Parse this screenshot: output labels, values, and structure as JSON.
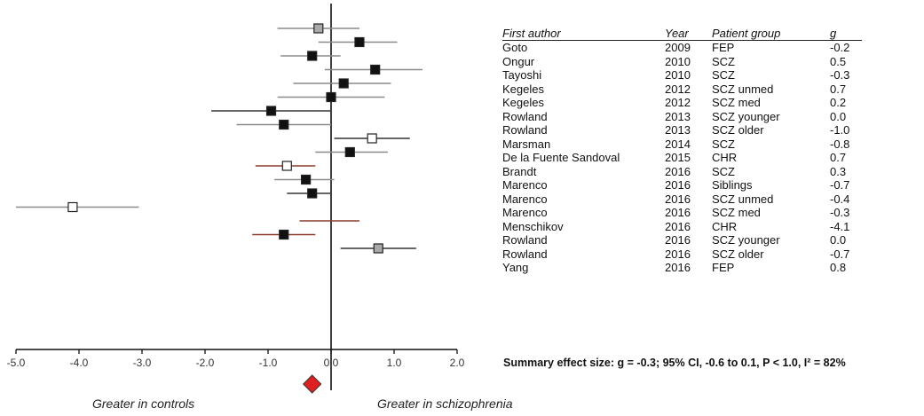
{
  "chart_data": {
    "type": "forest",
    "xlim": [
      -5.0,
      2.0
    ],
    "xticks": [
      "-5.0",
      "-4.0",
      "-3.0",
      "-2.0",
      "-1.0",
      "0.0",
      "1.0",
      "2.0"
    ],
    "xlabel_left": "Greater in controls",
    "xlabel_right": "Greater in schizophrenia",
    "table_headers": [
      "First author",
      "Year",
      "Patient group",
      "g"
    ],
    "studies": [
      {
        "author": "Goto",
        "year": "2009",
        "group": "FEP",
        "g_label": "-0.2",
        "g": -0.2,
        "ci": [
          -0.85,
          0.45
        ],
        "marker": "gray",
        "ci_color": "#8a8a8a"
      },
      {
        "author": "Ongur",
        "year": "2010",
        "group": "SCZ",
        "g_label": "0.5",
        "g": 0.45,
        "ci": [
          -0.2,
          1.05
        ],
        "marker": "black",
        "ci_color": "#8a8a8a"
      },
      {
        "author": "Tayoshi",
        "year": "2010",
        "group": "SCZ",
        "g_label": "-0.3",
        "g": -0.3,
        "ci": [
          -0.8,
          0.15
        ],
        "marker": "black",
        "ci_color": "#8a8a8a"
      },
      {
        "author": "Kegeles",
        "year": "2012",
        "group": "SCZ unmed",
        "g_label": "0.7",
        "g": 0.7,
        "ci": [
          -0.1,
          1.45
        ],
        "marker": "black",
        "ci_color": "#8a8a8a"
      },
      {
        "author": "Kegeles",
        "year": "2012",
        "group": "SCZ med",
        "g_label": "0.2",
        "g": 0.2,
        "ci": [
          -0.6,
          0.95
        ],
        "marker": "black",
        "ci_color": "#8a8a8a"
      },
      {
        "author": "Rowland",
        "year": "2013",
        "group": "SCZ younger",
        "g_label": "0.0",
        "g": 0.0,
        "ci": [
          -0.85,
          0.85
        ],
        "marker": "black",
        "ci_color": "#8a8a8a"
      },
      {
        "author": "Rowland",
        "year": "2013",
        "group": "SCZ older",
        "g_label": "-1.0",
        "g": -0.95,
        "ci": [
          -1.9,
          0.0
        ],
        "marker": "black",
        "ci_color": "#333333"
      },
      {
        "author": "Marsman",
        "year": "2014",
        "group": "SCZ",
        "g_label": "-0.8",
        "g": -0.75,
        "ci": [
          -1.5,
          0.0
        ],
        "marker": "black",
        "ci_color": "#8a8a8a"
      },
      {
        "author": "De la Fuente Sandoval",
        "year": "2015",
        "group": "CHR",
        "g_label": "0.7",
        "g": 0.65,
        "ci": [
          0.05,
          1.25
        ],
        "marker": "white",
        "ci_color": "#333333"
      },
      {
        "author": "Brandt",
        "year": "2016",
        "group": "SCZ",
        "g_label": "0.3",
        "g": 0.3,
        "ci": [
          -0.25,
          0.9
        ],
        "marker": "black",
        "ci_color": "#8a8a8a"
      },
      {
        "author": "Marenco",
        "year": "2016",
        "group": "Siblings",
        "g_label": "-0.7",
        "g": -0.7,
        "ci": [
          -1.2,
          -0.25
        ],
        "marker": "white",
        "ci_color": "#8b3a2a"
      },
      {
        "author": "Marenco",
        "year": "2016",
        "group": "SCZ unmed",
        "g_label": "-0.4",
        "g": -0.4,
        "ci": [
          -0.9,
          0.05
        ],
        "marker": "black",
        "ci_color": "#8a8a8a"
      },
      {
        "author": "Marenco",
        "year": "2016",
        "group": "SCZ med",
        "g_label": "-0.3",
        "g": -0.3,
        "ci": [
          -0.7,
          0.0
        ],
        "marker": "black",
        "ci_color": "#333333"
      },
      {
        "author": "Menschikov",
        "year": "2016",
        "group": "CHR",
        "g_label": "-4.1",
        "g": -4.1,
        "ci": [
          -5.0,
          -3.05
        ],
        "marker": "white",
        "ci_color": "#8a8a8a"
      },
      {
        "author": "Rowland",
        "year": "2016",
        "group": "SCZ younger",
        "g_label": "0.0",
        "g": 0.0,
        "ci": [
          -0.5,
          0.45
        ],
        "marker": "none",
        "ci_color": "#8b3a2a"
      },
      {
        "author": "Rowland",
        "year": "2016",
        "group": "SCZ older",
        "g_label": "-0.7",
        "g": -0.75,
        "ci": [
          -1.25,
          -0.25
        ],
        "marker": "black",
        "ci_color": "#8b3a2a"
      },
      {
        "author": "Yang",
        "year": "2016",
        "group": "FEP",
        "g_label": "0.8",
        "g": 0.75,
        "ci": [
          0.15,
          1.35
        ],
        "marker": "gray",
        "ci_color": "#333333"
      }
    ],
    "summary": {
      "g": -0.3,
      "ci": [
        -0.6,
        0.1
      ],
      "color": "#e02020"
    },
    "summary_text": "Summary effect size: g = -0.3; 95% CI, -0.6 to 0.1, P < 1.0, I² = 82%"
  }
}
